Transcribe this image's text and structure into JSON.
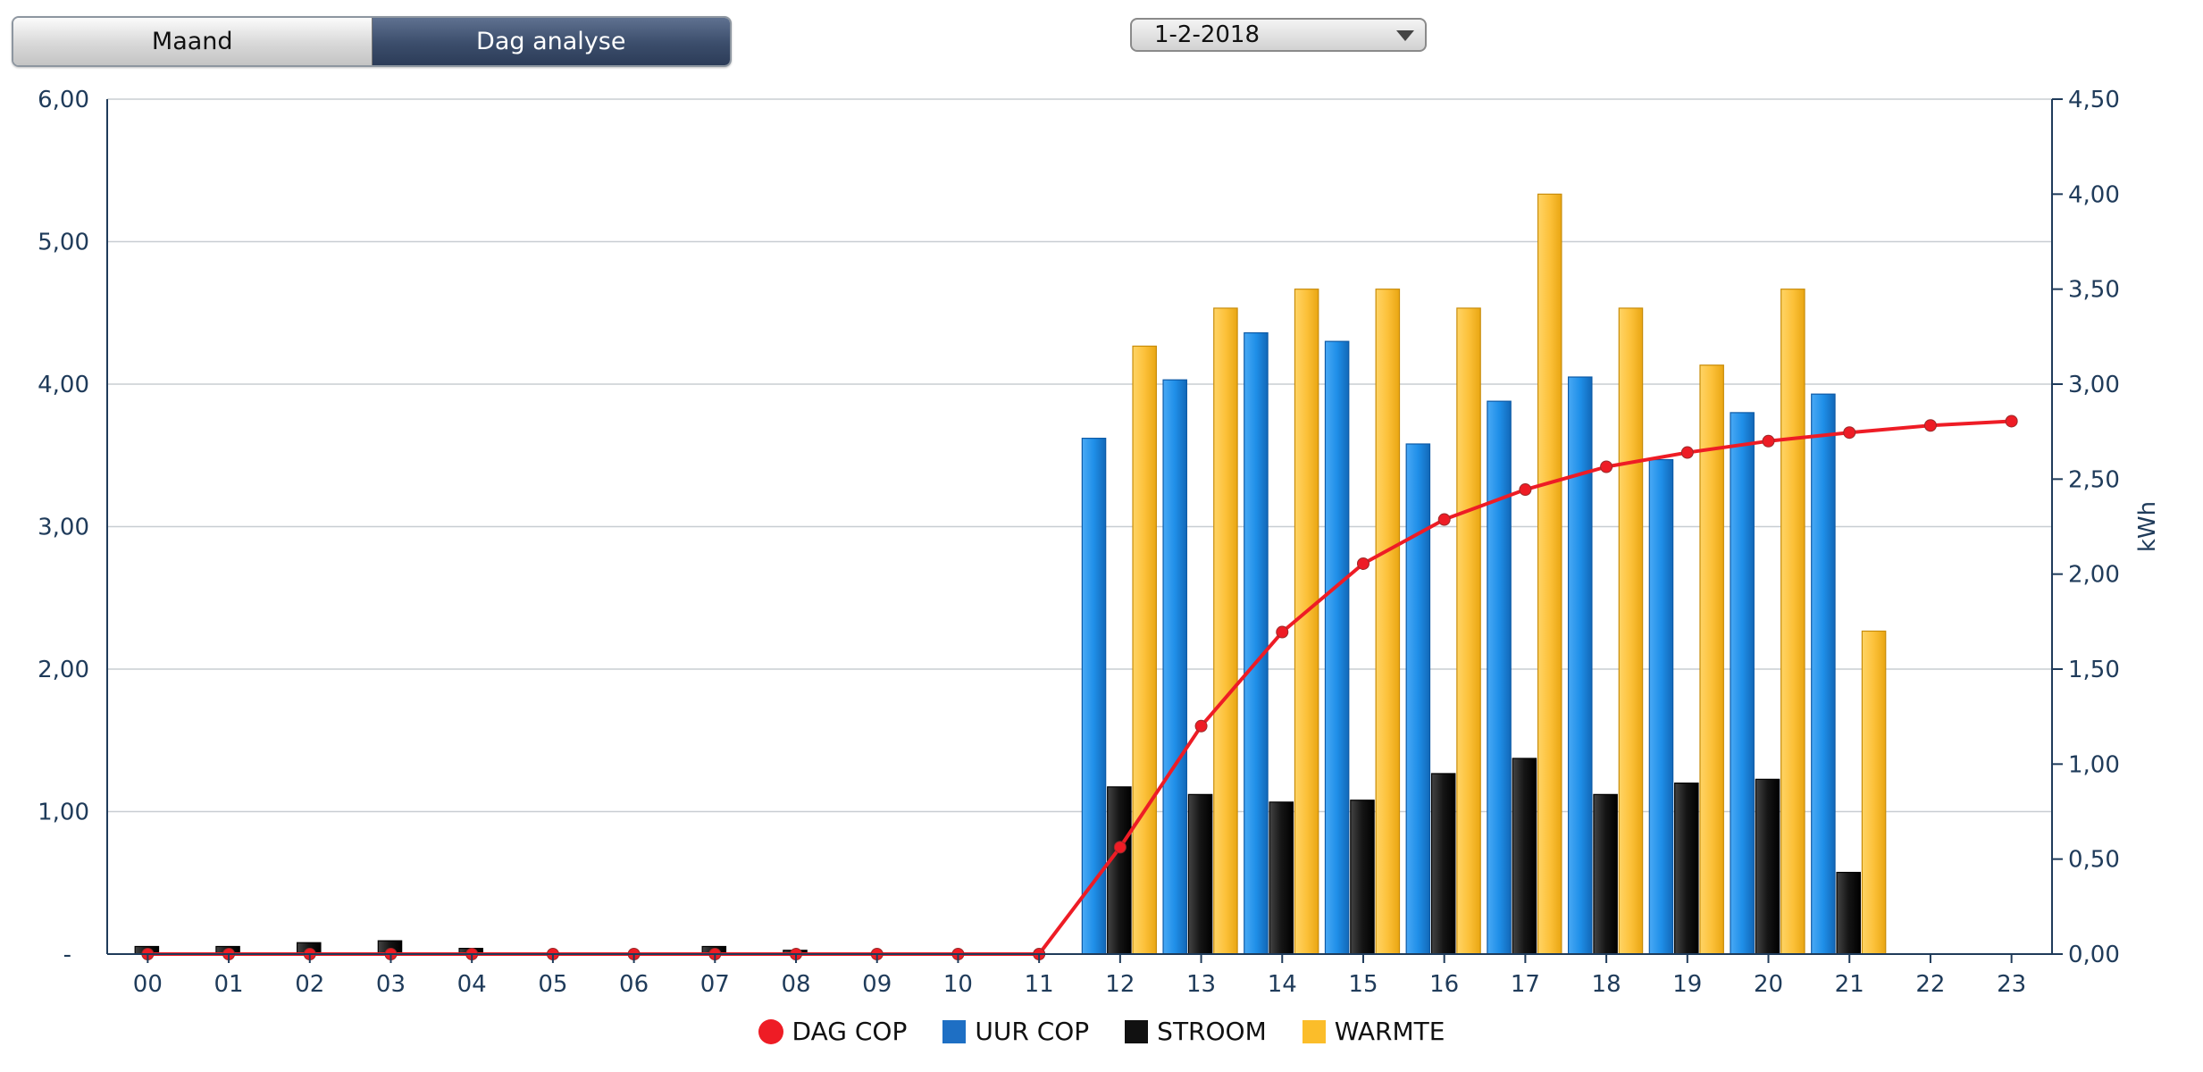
{
  "tabs": [
    {
      "label": "Maand",
      "active": false
    },
    {
      "label": "Dag analyse",
      "active": true
    }
  ],
  "date_select": {
    "value": "1-2-2018"
  },
  "colors": {
    "dag_cop": "#ee1c25",
    "uur_cop": "#1e8ce6",
    "stroom": "#111111",
    "warmte": "#fbbd2a"
  },
  "chart_data": {
    "type": "bar",
    "categories": [
      "00",
      "01",
      "02",
      "03",
      "04",
      "05",
      "06",
      "07",
      "08",
      "09",
      "10",
      "11",
      "12",
      "13",
      "14",
      "15",
      "16",
      "17",
      "18",
      "19",
      "20",
      "21",
      "22",
      "23"
    ],
    "y_left": {
      "ticks": [
        "-",
        "1,00",
        "2,00",
        "3,00",
        "4,00",
        "5,00",
        "6,00"
      ],
      "range": [
        0,
        6
      ]
    },
    "y_right": {
      "label": "kWh",
      "ticks": [
        "0,00",
        "0,50",
        "1,00",
        "1,50",
        "2,00",
        "2,50",
        "3,00",
        "3,50",
        "4,00",
        "4,50"
      ],
      "range": [
        0,
        4.5
      ]
    },
    "series": [
      {
        "name": "UUR COP",
        "type": "bar",
        "axis": "left",
        "values": [
          0,
          0,
          0,
          0,
          0,
          0,
          0,
          0,
          0,
          0,
          0,
          0,
          3.62,
          4.03,
          4.36,
          4.3,
          3.58,
          3.88,
          4.05,
          3.47,
          3.8,
          3.93,
          null,
          null
        ]
      },
      {
        "name": "STROOM",
        "type": "bar",
        "axis": "right",
        "values": [
          0.04,
          0.04,
          0.06,
          0.07,
          0.03,
          0,
          0,
          0.04,
          0.02,
          0,
          0,
          0,
          0.88,
          0.84,
          0.8,
          0.81,
          0.95,
          1.03,
          0.84,
          0.9,
          0.92,
          0.43,
          null,
          null
        ]
      },
      {
        "name": "WARMTE",
        "type": "bar",
        "axis": "right",
        "values": [
          0,
          0,
          0,
          0,
          0,
          0,
          0,
          0,
          0,
          0,
          0,
          0,
          3.2,
          3.4,
          3.5,
          3.5,
          3.4,
          4.0,
          3.4,
          3.1,
          3.5,
          1.7,
          null,
          null
        ]
      },
      {
        "name": "DAG COP",
        "type": "line",
        "axis": "left",
        "values": [
          0,
          0,
          0,
          0,
          0,
          0,
          0,
          0,
          0,
          0,
          0,
          0,
          0.75,
          1.6,
          2.26,
          2.74,
          3.05,
          3.26,
          3.42,
          3.52,
          3.6,
          3.66,
          3.71,
          3.74
        ]
      }
    ],
    "legend": {
      "position": "bottom",
      "items": [
        "DAG COP",
        "UUR COP",
        "STROOM",
        "WARMTE"
      ]
    },
    "grid": true
  }
}
